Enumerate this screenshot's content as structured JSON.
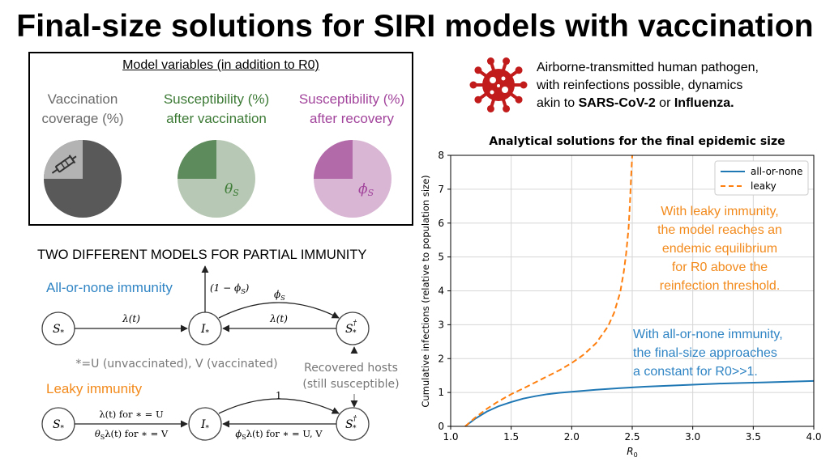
{
  "title": "Final-size solutions for SIRI models with vaccination",
  "variables_box": {
    "title": "Model variables (in addition to R0)",
    "items": [
      {
        "label_line1": "Vaccination",
        "label_line2": "coverage (%)",
        "color": "#6b6b6b",
        "pie_dark": "#595959",
        "pie_light": "#b3b3b3",
        "fraction": 0.25
      },
      {
        "label_line1": "Susceptibility (%)",
        "label_line2": "after vaccination",
        "color": "#3c7a35",
        "pie_dark": "#5e8b5c",
        "pie_light": "#b7c9b4",
        "fraction": 0.25,
        "symbol": "θ",
        "symbol_sub": "S"
      },
      {
        "label_line1": "Susceptibility (%)",
        "label_line2": "after recovery",
        "color": "#a2449c",
        "pie_dark": "#b26aa9",
        "pie_light": "#d9b6d4",
        "fraction": 0.25,
        "symbol": "ϕ",
        "symbol_sub": "S"
      }
    ]
  },
  "pathogen": {
    "line1": "Airborne-transmitted human pathogen,",
    "line2": "with reinfections possible, dynamics",
    "line3_prefix": "akin to ",
    "line3_bold1": "SARS-CoV-2",
    "line3_mid": " or ",
    "line3_bold2": "Influenza.",
    "icon_color": "#c11b1b"
  },
  "models": {
    "heading": "TWO DIFFERENT MODELS FOR PARTIAL IMMUNITY",
    "aon_name": "All-or-none immunity",
    "aon_color": "#2f84c4",
    "leaky_name": "Leaky immunity",
    "leaky_color": "#f28a1c",
    "note_star": "*=U (unvaccinated), V (vaccinated)",
    "note_recovered_1": "Recovered hosts",
    "note_recovered_2": "(still susceptible)",
    "aon_labels": {
      "s": "S",
      "i": "I",
      "sdag": "S",
      "lam": "λ(t)",
      "out_a": "(1 − ϕ",
      "out_b": ")",
      "phi": "ϕ",
      "lam2": "λ(t)",
      "sub_s": "S",
      "sub_star": "*",
      "dagger": "†"
    },
    "leaky_labels": {
      "s": "S",
      "i": "I",
      "sdag": "S",
      "top1": "λ(t) for ∗ = U",
      "bot1": "λ(t) for ∗ = V",
      "theta": "θ",
      "one": "1",
      "phi": "ϕ",
      "right": "λ(t) for ∗ = U, V",
      "sub_s": "S",
      "sub_star": "*",
      "dagger": "†"
    }
  },
  "chart_data": {
    "type": "line",
    "title": "Analytical solutions for the final epidemic size",
    "xlabel": "R",
    "xlabel_sub": "0",
    "ylabel": "Cumulative infections (relative to population size)",
    "xlim": [
      1.0,
      4.0
    ],
    "ylim": [
      0,
      8
    ],
    "xticks": [
      "1.0",
      "1.5",
      "2.0",
      "2.5",
      "3.0",
      "3.5",
      "4.0"
    ],
    "yticks": [
      "0",
      "1",
      "2",
      "3",
      "4",
      "5",
      "6",
      "7",
      "8"
    ],
    "grid": true,
    "legend_position": "top-right",
    "series": [
      {
        "name": "all-or-none",
        "color": "#1f77b4",
        "dash": "solid",
        "x": [
          1.12,
          1.2,
          1.3,
          1.4,
          1.5,
          1.6,
          1.7,
          1.8,
          1.9,
          2.0,
          2.2,
          2.4,
          2.6,
          2.8,
          3.0,
          3.2,
          3.4,
          3.6,
          3.8,
          4.0
        ],
        "y": [
          0.0,
          0.22,
          0.44,
          0.6,
          0.72,
          0.82,
          0.89,
          0.95,
          0.99,
          1.02,
          1.08,
          1.13,
          1.17,
          1.2,
          1.23,
          1.26,
          1.28,
          1.3,
          1.32,
          1.34
        ]
      },
      {
        "name": "leaky",
        "color": "#ff7f0e",
        "dash": "dashed",
        "x": [
          1.12,
          1.2,
          1.3,
          1.4,
          1.5,
          1.6,
          1.7,
          1.8,
          1.9,
          2.0,
          2.1,
          2.2,
          2.3,
          2.35,
          2.4,
          2.43,
          2.45,
          2.47,
          2.48,
          2.49,
          2.5
        ],
        "y": [
          0.0,
          0.25,
          0.52,
          0.75,
          0.95,
          1.12,
          1.3,
          1.48,
          1.66,
          1.87,
          2.12,
          2.45,
          2.95,
          3.35,
          3.95,
          4.55,
          5.1,
          5.85,
          6.5,
          7.3,
          8.0
        ]
      }
    ],
    "annotations": [
      {
        "color": "#f28a1c",
        "lines": [
          "With leaky immunity,",
          "the model reaches an",
          "endemic equilibrium",
          "for R0 above the",
          "reinfection threshold."
        ]
      },
      {
        "color": "#2f84c4",
        "lines": [
          "With all-or-none immunity,",
          "the final-size approaches",
          "a constant for R0>>1."
        ]
      }
    ]
  }
}
